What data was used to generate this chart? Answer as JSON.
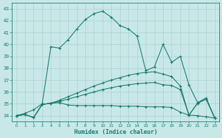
{
  "xlabel": "Humidex (Indice chaleur)",
  "x_values": [
    0,
    1,
    2,
    3,
    4,
    5,
    6,
    7,
    8,
    9,
    10,
    11,
    12,
    13,
    14,
    15,
    16,
    17,
    18,
    19,
    20,
    21,
    22,
    23
  ],
  "line1": [
    34.0,
    34.2,
    34.5,
    35.0,
    39.8,
    39.7,
    40.4,
    41.3,
    42.1,
    42.6,
    42.8,
    42.3,
    41.6,
    41.3,
    40.7,
    37.8,
    38.1,
    40.0,
    38.5,
    39.0,
    36.6,
    35.1,
    35.5,
    33.8
  ],
  "line2": [
    34.0,
    34.1,
    33.85,
    34.95,
    35.05,
    35.1,
    34.9,
    34.85,
    34.85,
    34.85,
    34.85,
    34.85,
    34.8,
    34.8,
    34.8,
    34.75,
    34.75,
    34.75,
    34.7,
    34.3,
    34.05,
    34.0,
    33.9,
    33.8
  ],
  "line3": [
    34.0,
    34.1,
    33.85,
    34.95,
    35.05,
    35.2,
    35.4,
    35.6,
    35.8,
    36.0,
    36.2,
    36.35,
    36.5,
    36.6,
    36.7,
    36.75,
    36.8,
    36.6,
    36.55,
    36.2,
    34.05,
    35.05,
    35.4,
    33.8
  ],
  "line4": [
    34.0,
    34.1,
    33.85,
    34.95,
    35.05,
    35.3,
    35.6,
    35.9,
    36.2,
    36.5,
    36.75,
    37.0,
    37.2,
    37.4,
    37.55,
    37.65,
    37.7,
    37.5,
    37.3,
    36.5,
    34.05,
    35.05,
    35.4,
    33.8
  ],
  "line_color": "#1a7a6e",
  "bg_color": "#c8e8e8",
  "grid_color": "#aacfcf",
  "ylim": [
    33.5,
    43.5
  ],
  "xlim": [
    -0.5,
    23.5
  ],
  "yticks": [
    34,
    35,
    36,
    37,
    38,
    39,
    40,
    41,
    42,
    43
  ],
  "xticks": [
    0,
    1,
    2,
    3,
    4,
    5,
    6,
    7,
    8,
    9,
    10,
    11,
    12,
    13,
    14,
    15,
    16,
    17,
    18,
    19,
    20,
    21,
    22,
    23
  ],
  "marker": "+",
  "linewidth": 0.8,
  "markersize": 3
}
